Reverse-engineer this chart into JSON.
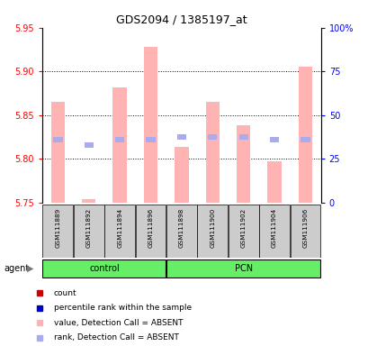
{
  "title": "GDS2094 / 1385197_at",
  "samples": [
    "GSM111889",
    "GSM111892",
    "GSM111894",
    "GSM111896",
    "GSM111898",
    "GSM111900",
    "GSM111902",
    "GSM111904",
    "GSM111906"
  ],
  "bar_values": [
    5.865,
    5.754,
    5.882,
    5.928,
    5.814,
    5.865,
    5.838,
    5.797,
    5.905
  ],
  "rank_values": [
    5.822,
    5.816,
    5.822,
    5.822,
    5.825,
    5.825,
    5.825,
    5.822,
    5.822
  ],
  "ylim_left": [
    5.75,
    5.95
  ],
  "ylim_right": [
    0,
    100
  ],
  "yticks_left": [
    5.75,
    5.8,
    5.85,
    5.9,
    5.95
  ],
  "yticks_right": [
    0,
    25,
    50,
    75,
    100
  ],
  "ytick_labels_right": [
    "0",
    "25",
    "50",
    "75",
    "100%"
  ],
  "bar_color": "#ffb3b3",
  "rank_color": "#aaaaee",
  "bar_bottom": 5.75,
  "group_control": [
    0,
    1,
    2,
    3
  ],
  "group_pcn": [
    4,
    5,
    6,
    7,
    8
  ],
  "control_label": "control",
  "pcn_label": "PCN",
  "agent_label": "agent",
  "group_bg_color": "#66ee66",
  "sample_bg_color": "#cccccc",
  "grid_lines": [
    5.8,
    5.85,
    5.9
  ],
  "legend_items": [
    {
      "color": "#cc0000",
      "label": "count"
    },
    {
      "color": "#0000cc",
      "label": "percentile rank within the sample"
    },
    {
      "color": "#ffb3b3",
      "label": "value, Detection Call = ABSENT"
    },
    {
      "color": "#aaaaee",
      "label": "rank, Detection Call = ABSENT"
    }
  ]
}
